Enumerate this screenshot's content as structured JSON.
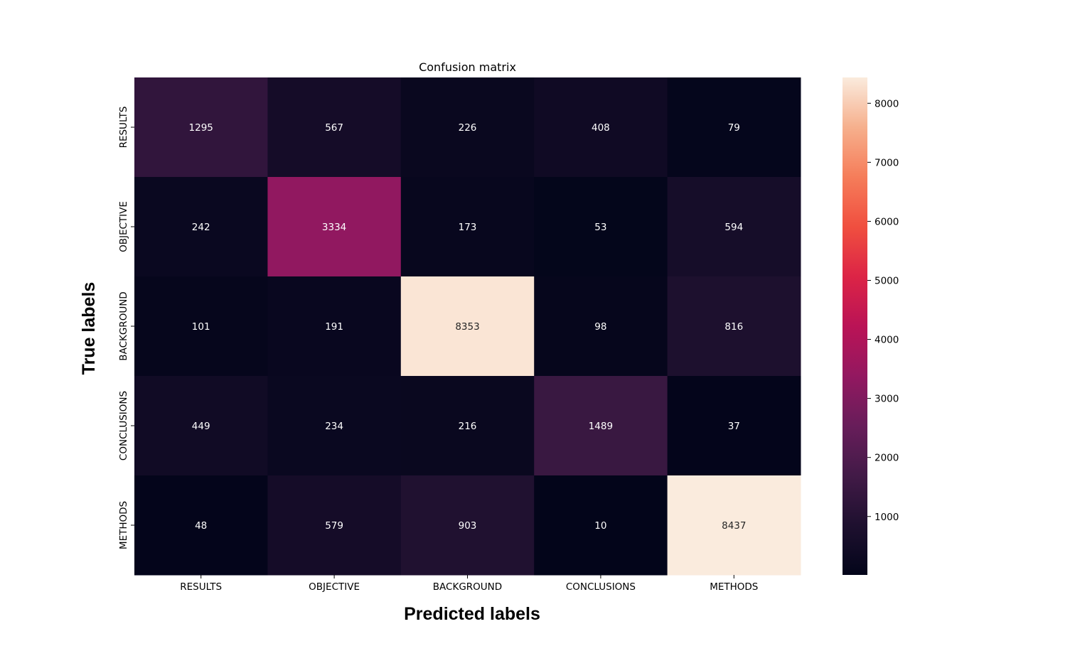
{
  "chart_data": {
    "type": "heatmap",
    "title": "Confusion matrix",
    "xlabel": "Predicted labels",
    "ylabel": "True labels",
    "x_categories": [
      "RESULTS",
      "OBJECTIVE",
      "BACKGROUND",
      "CONCLUSIONS",
      "METHODS"
    ],
    "y_categories": [
      "RESULTS",
      "OBJECTIVE",
      "BACKGROUND",
      "CONCLUSIONS",
      "METHODS"
    ],
    "values": [
      [
        1295,
        567,
        226,
        408,
        79
      ],
      [
        242,
        3334,
        173,
        53,
        594
      ],
      [
        101,
        191,
        8353,
        98,
        816
      ],
      [
        449,
        234,
        216,
        1489,
        37
      ],
      [
        48,
        579,
        903,
        10,
        8437
      ]
    ],
    "colormap": "rocket",
    "colorbar": {
      "min": 10,
      "max": 8437,
      "ticks": [
        1000,
        2000,
        3000,
        4000,
        5000,
        6000,
        7000,
        8000
      ]
    }
  }
}
